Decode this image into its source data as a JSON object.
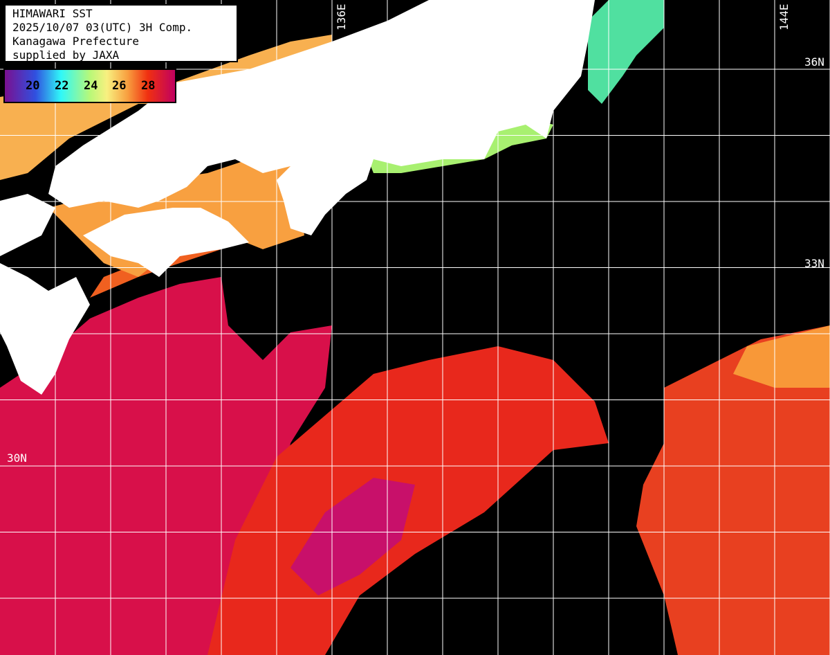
{
  "header": {
    "title": "HIMAWARI SST",
    "datetime": "2025/10/07 03(UTC) 3H Comp.",
    "organization": "Kanagawa Prefecture",
    "credit": "supplied by JAXA"
  },
  "colorbar": {
    "ticks": [
      "20",
      "22",
      "24",
      "26",
      "28"
    ],
    "colors": [
      "#7a1090",
      "#3050e0",
      "#30f8f8",
      "#b8f878",
      "#f8f080",
      "#f8a040",
      "#f03010",
      "#c00060"
    ]
  },
  "grid": {
    "longitude_labels": [
      "136E",
      "144E"
    ],
    "latitude_labels": [
      "36N",
      "33N",
      "30N"
    ],
    "line_color": "#ffffff"
  },
  "legend_colors": {
    "land": "#ffffff",
    "cloud_no_data": "#000000"
  }
}
